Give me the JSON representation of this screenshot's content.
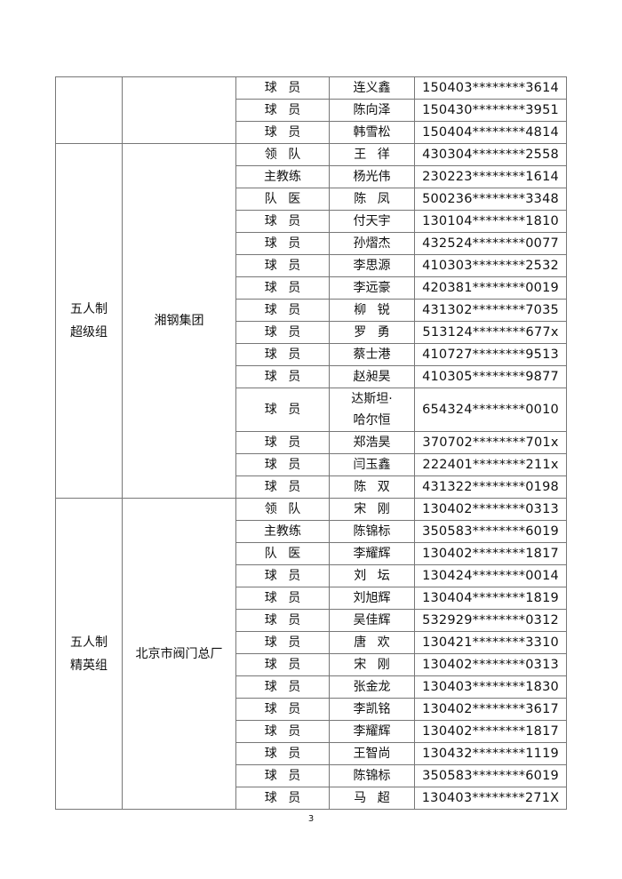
{
  "groups": [
    {
      "category": "",
      "unit": "",
      "members": [
        {
          "role": "球员",
          "name": "连义鑫",
          "id": "150403********3614"
        },
        {
          "role": "球员",
          "name": "陈向泽",
          "id": "150430********3951"
        },
        {
          "role": "球员",
          "name": "韩雪松",
          "id": "150404********4814"
        }
      ]
    },
    {
      "category": "五人制\n超级组",
      "unit": "湘钢集团",
      "members": [
        {
          "role": "领队",
          "name": "王徉",
          "id": "430304********2558"
        },
        {
          "role": "主教练",
          "name": "杨光伟",
          "id": "230223********1614"
        },
        {
          "role": "队医",
          "name": "陈凤",
          "id": "500236********3348"
        },
        {
          "role": "球员",
          "name": "付天宇",
          "id": "130104********1810"
        },
        {
          "role": "球员",
          "name": "孙熠杰",
          "id": "432524********0077"
        },
        {
          "role": "球员",
          "name": "李思源",
          "id": "410303********2532"
        },
        {
          "role": "球员",
          "name": "李远豪",
          "id": "420381********0019"
        },
        {
          "role": "球员",
          "name": "柳锐",
          "id": "431302********7035"
        },
        {
          "role": "球员",
          "name": "罗勇",
          "id": "513124********677x"
        },
        {
          "role": "球员",
          "name": "蔡士港",
          "id": "410727********9513"
        },
        {
          "role": "球员",
          "name": "赵昶昊",
          "id": "410305********9877"
        },
        {
          "role": "球员",
          "name": "达斯坦·\n哈尔恒",
          "id": "654324********0010"
        },
        {
          "role": "球员",
          "name": "郑浩昊",
          "id": "370702********701x"
        },
        {
          "role": "球员",
          "name": "闫玉鑫",
          "id": "222401********211x"
        },
        {
          "role": "球员",
          "name": "陈双",
          "id": "431322********0198"
        }
      ]
    },
    {
      "category": "五人制\n精英组",
      "unit": "北京市阀门总厂",
      "members": [
        {
          "role": "领队",
          "name": "宋刚",
          "id": "130402********0313"
        },
        {
          "role": "主教练",
          "name": "陈锦标",
          "id": "350583********6019"
        },
        {
          "role": "队医",
          "name": "李耀辉",
          "id": "130402********1817"
        },
        {
          "role": "球员",
          "name": "刘坛",
          "id": "130424********0014"
        },
        {
          "role": "球员",
          "name": "刘旭辉",
          "id": "130404********1819"
        },
        {
          "role": "球员",
          "name": "吴佳辉",
          "id": "532929********0312"
        },
        {
          "role": "球员",
          "name": "唐欢",
          "id": "130421********3310"
        },
        {
          "role": "球员",
          "name": "宋刚",
          "id": "130402********0313"
        },
        {
          "role": "球员",
          "name": "张金龙",
          "id": "130403********1830"
        },
        {
          "role": "球员",
          "name": "李凯铭",
          "id": "130402********3617"
        },
        {
          "role": "球员",
          "name": "李耀辉",
          "id": "130402********1817"
        },
        {
          "role": "球员",
          "name": "王智尚",
          "id": "130432********1119"
        },
        {
          "role": "球员",
          "name": "陈锦标",
          "id": "350583********6019"
        },
        {
          "role": "球员",
          "name": "马超",
          "id": "130403********271X"
        }
      ]
    }
  ],
  "page_number": "3"
}
